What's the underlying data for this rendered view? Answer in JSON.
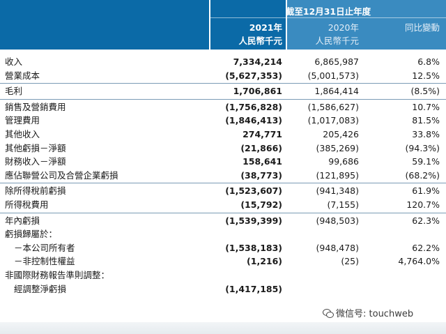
{
  "header": {
    "period": "截至12月31日止年度",
    "col_2021_year": "2021年",
    "col_2021_unit": "人民幣千元",
    "col_2020_year": "2020年",
    "col_2020_unit": "人民幣千元",
    "col_change": "同比變動"
  },
  "rows": [
    {
      "label": "收入",
      "v2021": "7,334,214",
      "v2020": "6,865,987",
      "change": "6.8%"
    },
    {
      "label": "營業成本",
      "v2021": "(5,627,353)",
      "v2020": "(5,001,573)",
      "change": "12.5%"
    },
    {
      "label": "毛利",
      "v2021": "1,706,861",
      "v2020": "1,864,414",
      "change": "(8.5%)"
    },
    {
      "label": "銷售及營銷費用",
      "v2021": "(1,756,828)",
      "v2020": "(1,586,627)",
      "change": "10.7%"
    },
    {
      "label": "管理費用",
      "v2021": "(1,846,413)",
      "v2020": "(1,017,083)",
      "change": "81.5%"
    },
    {
      "label": "其他收入",
      "v2021": "274,771",
      "v2020": "205,426",
      "change": "33.8%"
    },
    {
      "label": "其他虧損－淨額",
      "v2021": "(21,866)",
      "v2020": "(385,269)",
      "change": "(94.3%)"
    },
    {
      "label": "財務收入－淨額",
      "v2021": "158,641",
      "v2020": "99,686",
      "change": "59.1%"
    },
    {
      "label": "應佔聯營公司及合營企業虧損",
      "v2021": "(38,773)",
      "v2020": "(121,895)",
      "change": "(68.2%)"
    },
    {
      "label": "除所得稅前虧損",
      "v2021": "(1,523,607)",
      "v2020": "(941,348)",
      "change": "61.9%"
    },
    {
      "label": "所得稅費用",
      "v2021": "(15,792)",
      "v2020": "(7,155)",
      "change": "120.7%"
    },
    {
      "label": "年內虧損",
      "v2021": "(1,539,399)",
      "v2020": "(948,503)",
      "change": "62.3%"
    },
    {
      "label": "虧損歸屬於：",
      "v2021": "",
      "v2020": "",
      "change": ""
    },
    {
      "label": "－本公司所有者",
      "v2021": "(1,538,183)",
      "v2020": "(948,478)",
      "change": "62.2%"
    },
    {
      "label": "－非控制性權益",
      "v2021": "(1,216)",
      "v2020": "(25)",
      "change": "4,764.0%"
    },
    {
      "label": "非國際財務報告準則調整：",
      "v2021": "",
      "v2020": "",
      "change": ""
    },
    {
      "label": "經調整淨虧損",
      "v2021": "(1,417,185)",
      "v2020": "",
      "change": ""
    }
  ],
  "watermark": {
    "text": "微信号: touchweb",
    "icon": "wechat-icon"
  },
  "colors": {
    "header_dark": "#0b6aa7",
    "header_light": "#3a8bc0",
    "rule": "#7a9bb5"
  }
}
